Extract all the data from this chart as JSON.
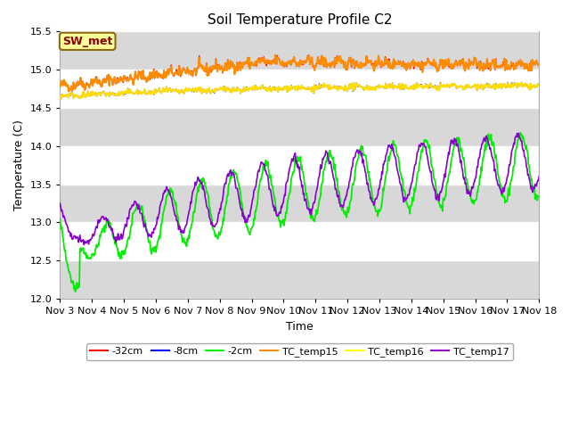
{
  "title": "Soil Temperature Profile C2",
  "xlabel": "Time",
  "ylabel": "Temperature (C)",
  "ylim": [
    12.0,
    15.5
  ],
  "xtick_labels": [
    "Nov 3",
    "Nov 4",
    "Nov 5",
    "Nov 6",
    "Nov 7",
    "Nov 8",
    "Nov 9",
    "Nov 10",
    "Nov 11",
    "Nov 12",
    "Nov 13",
    "Nov 14",
    "Nov 15",
    "Nov 16",
    "Nov 17",
    "Nov 18"
  ],
  "legend_entries": [
    "-32cm",
    "-8cm",
    "-2cm",
    "TC_temp15",
    "TC_temp16",
    "TC_temp17"
  ],
  "legend_colors": [
    "#ff0000",
    "#0000ff",
    "#00ff00",
    "#ff8c00",
    "#ffff00",
    "#9400d3"
  ],
  "line_colors": {
    "neg32": "#ff0000",
    "neg8": "#0000ff",
    "neg2": "#00ee00",
    "tc15": "#ff8c00",
    "tc16": "#ffdd00",
    "tc17": "#8800cc"
  },
  "annotation_text": "SW_met",
  "annotation_bg": "#ffff99",
  "annotation_border": "#8b6914",
  "annotation_text_color": "#8b0000",
  "band_color": "#d8d8d8",
  "band_intervals": [
    12.0,
    12.5,
    13.0,
    13.5,
    14.0,
    14.5,
    15.0,
    15.5
  ]
}
